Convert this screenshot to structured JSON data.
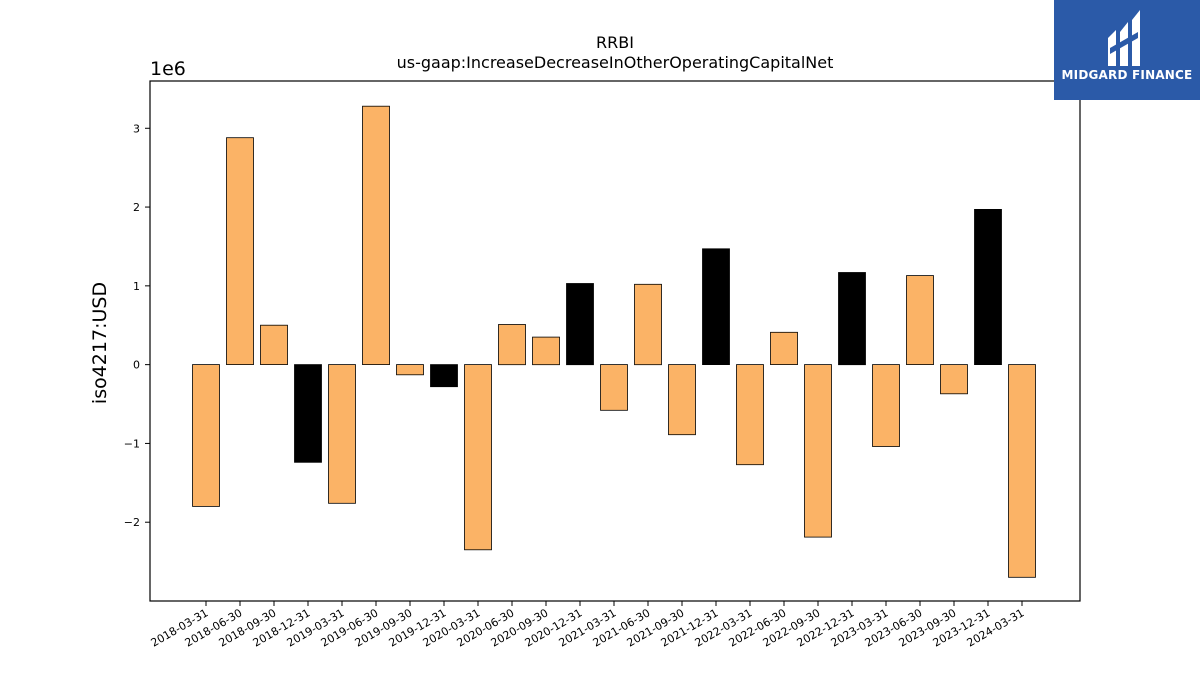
{
  "chart_data": {
    "type": "bar",
    "title": "RRBI",
    "subtitle": "us-gaap:IncreaseDecreaseInOtherOperatingCapitalNet",
    "ylabel": "iso4217:USD",
    "xlabel": "",
    "y_multiplier_label": "1e6",
    "ylim": [
      -3.0,
      3.6
    ],
    "yticks": [
      -2,
      -1,
      0,
      1,
      2,
      3
    ],
    "ytick_labels": [
      "−2",
      "−1",
      "0",
      "1",
      "2",
      "3"
    ],
    "grid": false,
    "categories": [
      "2018-03-31",
      "2018-06-30",
      "2018-09-30",
      "2018-12-31",
      "2019-03-31",
      "2019-06-30",
      "2019-09-30",
      "2019-12-31",
      "2020-03-31",
      "2020-06-30",
      "2020-09-30",
      "2020-12-31",
      "2021-03-31",
      "2021-06-30",
      "2021-09-30",
      "2021-12-31",
      "2022-03-31",
      "2022-06-30",
      "2022-09-30",
      "2022-12-31",
      "2023-03-31",
      "2023-06-30",
      "2023-09-30",
      "2023-12-31",
      "2024-03-31"
    ],
    "values": [
      -1.8,
      2.88,
      0.5,
      -1.24,
      -1.76,
      3.28,
      -0.13,
      -0.28,
      -2.35,
      0.51,
      0.35,
      1.03,
      -0.58,
      1.02,
      -0.89,
      1.47,
      -1.27,
      0.41,
      -2.19,
      1.17,
      -1.04,
      1.13,
      -0.37,
      1.97,
      -2.7
    ],
    "year_end": [
      false,
      false,
      false,
      true,
      false,
      false,
      false,
      true,
      false,
      false,
      false,
      true,
      false,
      false,
      false,
      true,
      false,
      false,
      false,
      true,
      false,
      false,
      false,
      true,
      false
    ],
    "colors": {
      "quarter": "#fbb366",
      "year_end": "#000000",
      "edge": "#000000"
    }
  },
  "logo": {
    "text": "MIDGARD FINANCE",
    "background": "#2b5aa8"
  }
}
